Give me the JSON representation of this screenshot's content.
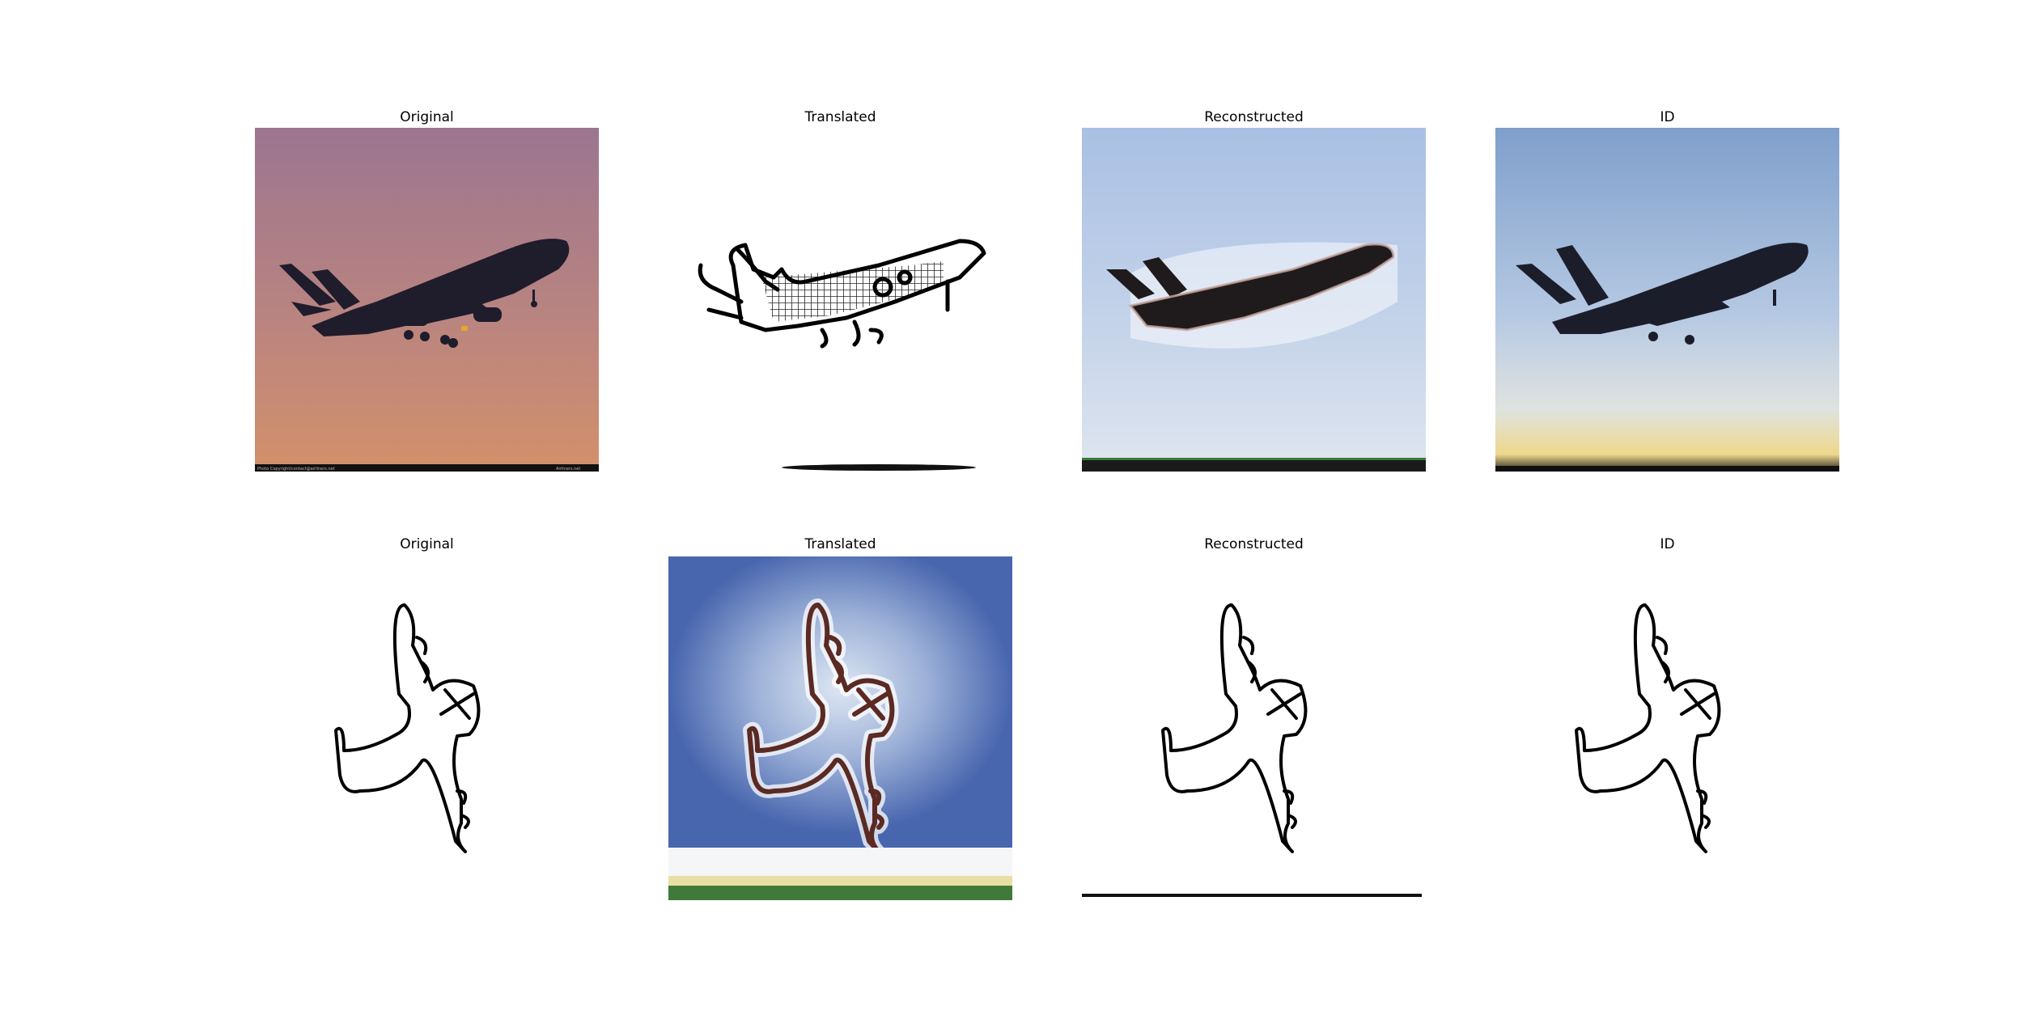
{
  "figure": {
    "rows": [
      {
        "panels": [
          {
            "title": "Original",
            "content": "airplane-photo-silhouette",
            "footer_left": "Photo Copyright/contact@airliners.net",
            "footer_right": "Airliners.net"
          },
          {
            "title": "Translated",
            "content": "airplane-sketch"
          },
          {
            "title": "Reconstructed",
            "content": "airplane-reconstructed-photo"
          },
          {
            "title": "ID",
            "content": "airplane-identity-photo"
          }
        ]
      },
      {
        "panels": [
          {
            "title": "Original",
            "content": "airplane-line-sketch"
          },
          {
            "title": "Translated",
            "content": "sketch-translated-photo"
          },
          {
            "title": "Reconstructed",
            "content": "sketch-reconstructed"
          },
          {
            "title": "ID",
            "content": "sketch-identity"
          }
        ]
      }
    ]
  },
  "colors": {
    "sunset_top": "#9b7590",
    "sunset_bottom": "#cf8e6a",
    "silhouette": "#1f1c2c",
    "sky_light": "#b3c7e6",
    "sky_blue": "#4d6fb5",
    "ink": "#000000"
  }
}
